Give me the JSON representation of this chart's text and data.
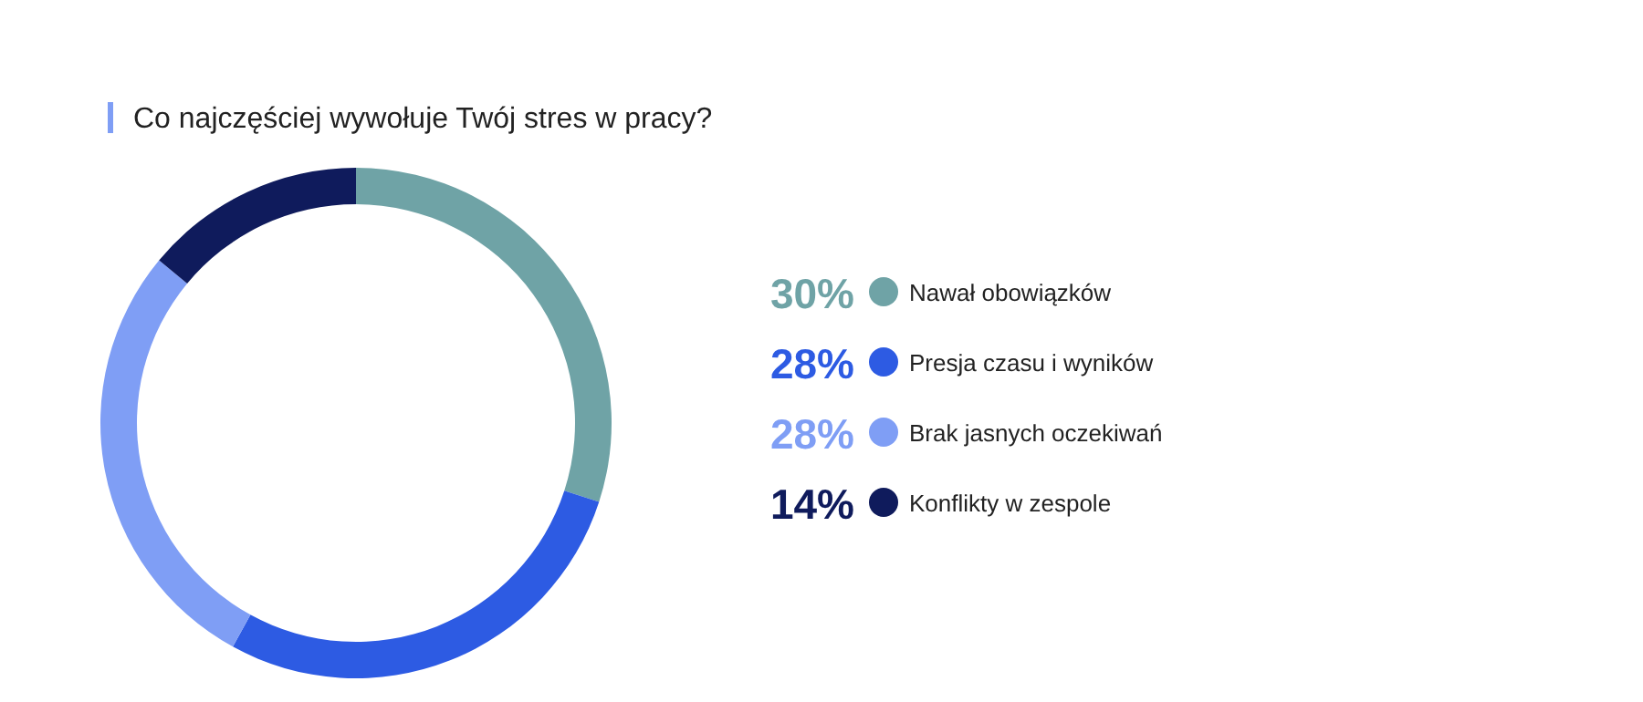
{
  "chart_data": {
    "type": "donut",
    "title": "Co najczęściej wywołuje Twój stres w pracy?",
    "categories": [
      "Nawał obowiązków",
      "Presja czasu i wyników",
      "Brak jasnych oczekiwań",
      "Konflikty w zespole"
    ],
    "values": [
      30,
      28,
      28,
      14
    ],
    "value_labels": [
      "30%",
      "28%",
      "28%",
      "14%"
    ],
    "colors": [
      "#6fa3a6",
      "#2d5be3",
      "#7f9ef5",
      "#0f1b5c"
    ],
    "legend": "right"
  }
}
